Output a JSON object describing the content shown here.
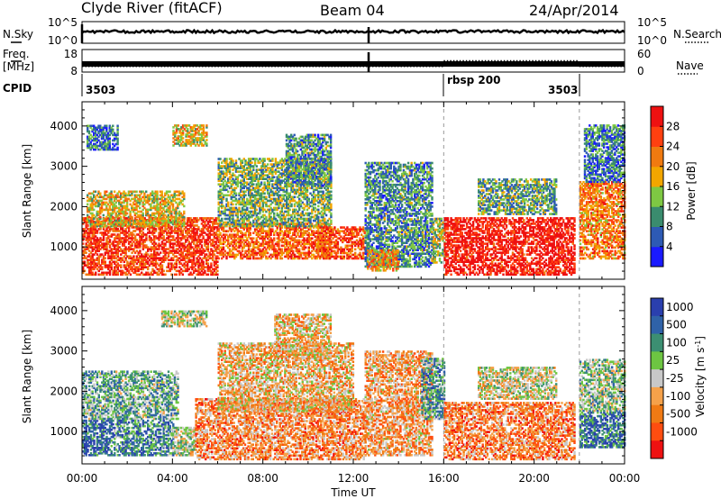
{
  "header": {
    "station": "Clyde River (fitACF)",
    "beam": "Beam 04",
    "date": "24/Apr/2014"
  },
  "chart_data": [
    {
      "type": "line",
      "panel": "nsky",
      "left_label": "N.Sky",
      "right_label": "N.Search",
      "left_ticks": [
        "10^5",
        "10^0"
      ],
      "right_ticks": [
        "10^5",
        "10^0"
      ]
    },
    {
      "type": "line",
      "panel": "freq",
      "left_label": "Freq.",
      "left_unit": "[MHz]",
      "right_label": "Nave",
      "left_ticks": [
        "18",
        "8"
      ],
      "right_ticks": [
        "60",
        "0"
      ],
      "freq_level_mhz": 11.0,
      "nave_level": [
        {
          "from_hour": 0,
          "to_hour": 16,
          "value": 15
        },
        {
          "from_hour": 16,
          "to_hour": 22,
          "value": 30
        },
        {
          "from_hour": 22,
          "to_hour": 24,
          "value": 15
        }
      ]
    },
    {
      "type": "table",
      "panel": "cpid",
      "label": "CPID",
      "segments": [
        {
          "label": "3503",
          "from_hour": 0,
          "to_hour": 16
        },
        {
          "label": "rbsp 200",
          "from_hour": 16,
          "to_hour": 22
        },
        {
          "label": "3503",
          "from_hour": 22,
          "to_hour": 24
        }
      ]
    },
    {
      "type": "heatmap",
      "panel": "power",
      "ylabel": "Slant Range [km]",
      "xlim": [
        0,
        24
      ],
      "ylim": [
        200,
        4600
      ],
      "yticks": [
        "1000",
        "2000",
        "3000",
        "4000"
      ],
      "colorbar_label": "Power [dB]",
      "colorbar_ticks": [
        "4",
        "8",
        "12",
        "16",
        "20",
        "24",
        "28"
      ],
      "colors": [
        "#1a1aff",
        "#2d5ab4",
        "#3a8c6e",
        "#7ec843",
        "#f2a600",
        "#f07a10",
        "#ff4010",
        "#ee1111"
      ],
      "echo_bands": [
        {
          "t0": 0.0,
          "t1": 6.0,
          "r0": 300,
          "r1": 1700,
          "level": 0.85
        },
        {
          "t0": 0.2,
          "t1": 4.5,
          "r0": 1500,
          "r1": 2400,
          "level": 0.55
        },
        {
          "t0": 0.2,
          "t1": 1.6,
          "r0": 3400,
          "r1": 4000,
          "level": 0.25
        },
        {
          "t0": 4.0,
          "t1": 5.5,
          "r0": 3500,
          "r1": 4000,
          "level": 0.55
        },
        {
          "t0": 6.0,
          "t1": 11.0,
          "r0": 700,
          "r1": 1600,
          "level": 0.75
        },
        {
          "t0": 6.0,
          "t1": 11.0,
          "r0": 1500,
          "r1": 3200,
          "level": 0.4
        },
        {
          "t0": 9.0,
          "t1": 11.0,
          "r0": 2500,
          "r1": 3800,
          "level": 0.3
        },
        {
          "t0": 10.5,
          "t1": 12.5,
          "r0": 700,
          "r1": 1500,
          "level": 0.8
        },
        {
          "t0": 12.5,
          "t1": 15.5,
          "r0": 500,
          "r1": 3100,
          "level": 0.3
        },
        {
          "t0": 12.6,
          "t1": 14.0,
          "r0": 400,
          "r1": 900,
          "level": 0.65
        },
        {
          "t0": 15.5,
          "t1": 16.0,
          "r0": 600,
          "r1": 1700,
          "level": 0.45
        },
        {
          "t0": 16.0,
          "t1": 21.8,
          "r0": 300,
          "r1": 1700,
          "level": 0.95
        },
        {
          "t0": 17.5,
          "t1": 21.0,
          "r0": 1800,
          "r1": 2700,
          "level": 0.35
        },
        {
          "t0": 22.0,
          "t1": 24.0,
          "r0": 700,
          "r1": 2600,
          "level": 0.7
        },
        {
          "t0": 22.2,
          "t1": 24.0,
          "r0": 2600,
          "r1": 4000,
          "level": 0.25
        }
      ]
    },
    {
      "type": "heatmap",
      "panel": "velocity",
      "xlabel": "Time UT",
      "ylabel": "Slant Range [km]",
      "xlim": [
        0,
        24
      ],
      "ylim": [
        200,
        4600
      ],
      "xticks": [
        "00:00",
        "04:00",
        "08:00",
        "12:00",
        "16:00",
        "20:00",
        "00:00"
      ],
      "yticks": [
        "1000",
        "2000",
        "3000",
        "4000"
      ],
      "colorbar_label": "Velocity [m s^-1]",
      "colorbar_ticks": [
        "1000",
        "500",
        "100",
        "25",
        "-25",
        "-100",
        "-500",
        "-1000"
      ],
      "colors": [
        "#2a3fae",
        "#2f62a8",
        "#3c8f72",
        "#6dc542",
        "#c8c8c8",
        "#f5a14a",
        "#f07a14",
        "#ff4d10",
        "#ee1111"
      ],
      "echo_bands": [
        {
          "t0": 0.0,
          "t1": 1.4,
          "r0": 400,
          "r1": 1300,
          "level": 0.15
        },
        {
          "t0": 0.0,
          "t1": 4.2,
          "r0": 1300,
          "r1": 2500,
          "level": 0.35
        },
        {
          "t0": 1.4,
          "t1": 4.0,
          "r0": 400,
          "r1": 1300,
          "level": 0.25
        },
        {
          "t0": 4.0,
          "t1": 5.0,
          "r0": 400,
          "r1": 1100,
          "level": 0.45
        },
        {
          "t0": 3.5,
          "t1": 5.5,
          "r0": 3600,
          "r1": 4000,
          "level": 0.45
        },
        {
          "t0": 5.0,
          "t1": 12.5,
          "r0": 300,
          "r1": 1800,
          "level": 0.7
        },
        {
          "t0": 6.0,
          "t1": 12.0,
          "r0": 1500,
          "r1": 3200,
          "level": 0.6
        },
        {
          "t0": 8.5,
          "t1": 11.0,
          "r0": 2800,
          "r1": 3900,
          "level": 0.6
        },
        {
          "t0": 12.5,
          "t1": 15.5,
          "r0": 400,
          "r1": 3000,
          "level": 0.65
        },
        {
          "t0": 15.0,
          "t1": 16.0,
          "r0": 1300,
          "r1": 2800,
          "level": 0.3
        },
        {
          "t0": 16.0,
          "t1": 21.8,
          "r0": 300,
          "r1": 1700,
          "level": 0.72
        },
        {
          "t0": 17.5,
          "t1": 21.0,
          "r0": 1800,
          "r1": 2600,
          "level": 0.5
        },
        {
          "t0": 22.0,
          "t1": 24.0,
          "r0": 600,
          "r1": 1500,
          "level": 0.2
        },
        {
          "t0": 22.0,
          "t1": 24.0,
          "r0": 1500,
          "r1": 2800,
          "level": 0.4
        }
      ]
    }
  ]
}
